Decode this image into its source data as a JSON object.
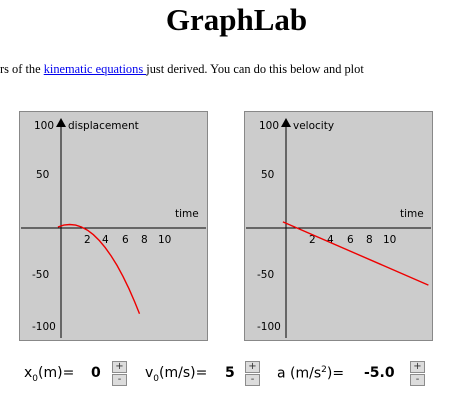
{
  "page": {
    "title": "GraphLab",
    "intro_before": "rs of the ",
    "intro_link": "kinematic equations ",
    "intro_after": "just derived. You can do this below and plot"
  },
  "graphs": [
    {
      "id": "displacement",
      "label": "displacement",
      "time_label": "time",
      "y_ticks": [
        "100",
        "50",
        "-50",
        "-100"
      ],
      "x_ticks": [
        "2",
        "4",
        "6",
        "8",
        "10"
      ],
      "curve_color": "#ee0000"
    },
    {
      "id": "velocity",
      "label": "velocity",
      "time_label": "time",
      "y_ticks": [
        "100",
        "50",
        "-50",
        "-100"
      ],
      "x_ticks": [
        "2",
        "4",
        "6",
        "8",
        "10"
      ],
      "curve_color": "#ee0000"
    }
  ],
  "chart_data": [
    {
      "type": "line",
      "title": "displacement",
      "xlabel": "time",
      "ylabel": "",
      "xlim": [
        -3.2,
        12.6
      ],
      "ylim": [
        -110,
        112
      ],
      "x_ticks": [
        2,
        4,
        6,
        8,
        10
      ],
      "y_ticks": [
        100,
        50,
        -50,
        -100
      ],
      "series": [
        {
          "x": [
            0,
            0.5,
            1,
            1.5,
            2,
            2.5,
            3,
            3.5,
            4,
            4.5,
            5,
            5.5,
            6,
            6.5,
            6.9
          ],
          "y": [
            0,
            1.88,
            2.5,
            1.88,
            0,
            -3.12,
            -7.5,
            -13.12,
            -20,
            -28.12,
            -37.5,
            -48.12,
            -60,
            -73.12,
            -84.5
          ],
          "color": "#ee0000"
        }
      ],
      "grid": false
    },
    {
      "type": "line",
      "title": "velocity",
      "xlabel": "time",
      "ylabel": "",
      "xlim": [
        -3.2,
        12.6
      ],
      "ylim": [
        -110,
        112
      ],
      "x_ticks": [
        2,
        4,
        6,
        8,
        10
      ],
      "y_ticks": [
        100,
        50,
        -50,
        -100
      ],
      "series": [
        {
          "x": [
            0,
            12.3
          ],
          "y": [
            5,
            -56.5
          ],
          "color": "#ee0000"
        }
      ],
      "grid": false
    }
  ],
  "controls": {
    "x0": {
      "label": "x",
      "sub": "0",
      "unit": "(m)=",
      "value": "0"
    },
    "v0": {
      "label": "v",
      "sub": "0",
      "unit": "(m/s)=",
      "value": "5"
    },
    "a": {
      "label": "a (m/s",
      "sup": "2",
      "unit": ")=",
      "value": "-5.0"
    },
    "plus_label": "+",
    "minus_label": "-"
  }
}
